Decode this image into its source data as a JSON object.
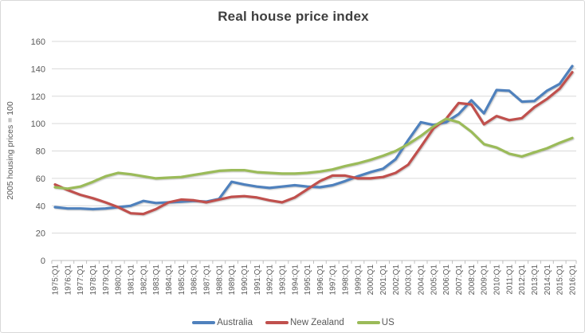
{
  "chart_data": {
    "type": "line",
    "title": "Real house price index",
    "xlabel": "",
    "ylabel": "2005 housing prices = 100",
    "ylim": [
      0,
      160
    ],
    "ytick_step": 20,
    "grid": true,
    "legend_position": "bottom",
    "text_color": "#595959",
    "title_color": "#3f3f3f",
    "gridline_color": "#d9d9d9",
    "axis_line_color": "#bfbfbf",
    "categories": [
      "1975:Q1",
      "1976:Q1",
      "1977:Q1",
      "1978:Q1",
      "1979:Q1",
      "1980:Q1",
      "1981:Q1",
      "1982:Q1",
      "1983:Q1",
      "1984:Q1",
      "1985:Q1",
      "1986:Q1",
      "1987:Q1",
      "1988:Q1",
      "1989:Q1",
      "1990:Q1",
      "1991:Q1",
      "1992:Q1",
      "1993:Q1",
      "1994:Q1",
      "1995:Q1",
      "1996:Q1",
      "1997:Q1",
      "1998:Q1",
      "1999:Q1",
      "2000:Q1",
      "2001:Q1",
      "2002:Q1",
      "2003:Q1",
      "2004:Q1",
      "2005:Q1",
      "2006:Q1",
      "2007:Q1",
      "2008:Q1",
      "2009:Q1",
      "2010:Q1",
      "2011:Q1",
      "2012:Q1",
      "2013:Q1",
      "2014:Q1",
      "2015:Q1",
      "2016:Q1"
    ],
    "series": [
      {
        "name": "Australia",
        "color": "#4f81bd",
        "values": [
          39,
          38,
          38,
          37.5,
          38,
          39,
          40,
          43.5,
          42,
          42.5,
          43,
          43.5,
          43,
          45,
          57.5,
          55.5,
          54,
          53,
          54,
          55,
          54,
          53.5,
          55,
          58,
          61.5,
          64.5,
          67,
          74,
          88,
          101,
          99,
          101,
          107,
          117,
          107.5,
          124.5,
          124,
          116,
          116.5,
          124,
          129,
          142
        ]
      },
      {
        "name": "New Zealand",
        "color": "#c0504d",
        "values": [
          55.5,
          51.5,
          48,
          45.5,
          42.5,
          39,
          34.5,
          34,
          37.5,
          42.5,
          44.5,
          44,
          42.5,
          44.5,
          46.5,
          47,
          46,
          44,
          42.5,
          46,
          52,
          58,
          62,
          62,
          60,
          60,
          61,
          64,
          70,
          83,
          96.5,
          103.5,
          115,
          114,
          99.5,
          105.5,
          102.5,
          104,
          112,
          118,
          125.5,
          137.5
        ]
      },
      {
        "name": "US",
        "color": "#9bbb59",
        "values": [
          53.5,
          52.5,
          54,
          57.5,
          61.5,
          64,
          63,
          61.5,
          60,
          60.5,
          61,
          62.5,
          64,
          65.5,
          66,
          66,
          64.5,
          64,
          63.5,
          63.5,
          64,
          65,
          66.5,
          69,
          71,
          73.5,
          76.5,
          80,
          85,
          91,
          98,
          103.5,
          101,
          94,
          85,
          82.5,
          78,
          76,
          79,
          82,
          86,
          89.5
        ]
      }
    ]
  }
}
